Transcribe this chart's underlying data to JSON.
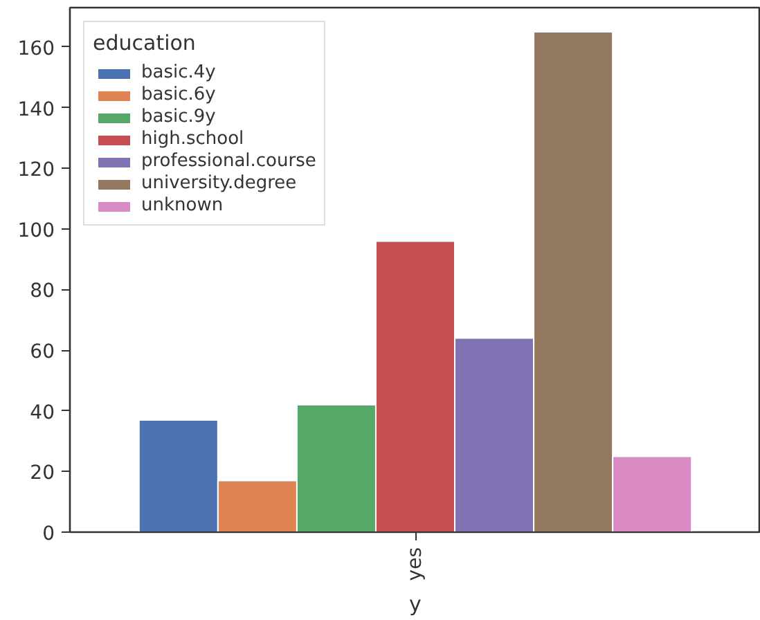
{
  "chart_data": {
    "type": "bar",
    "xlabel": "y",
    "legend_title": "education",
    "categories": [
      "yes"
    ],
    "series": [
      {
        "name": "basic.4y",
        "color": "#4c72b0",
        "values": [
          37
        ]
      },
      {
        "name": "basic.6y",
        "color": "#dd8452",
        "values": [
          17
        ]
      },
      {
        "name": "basic.9y",
        "color": "#55a868",
        "values": [
          42
        ]
      },
      {
        "name": "high.school",
        "color": "#c44e52",
        "values": [
          96
        ]
      },
      {
        "name": "professional.course",
        "color": "#8172b3",
        "values": [
          64
        ]
      },
      {
        "name": "university.degree",
        "color": "#937860",
        "values": [
          165
        ]
      },
      {
        "name": "unknown",
        "color": "#da8bc3",
        "values": [
          25
        ]
      }
    ],
    "ylim": [
      0,
      173
    ],
    "yticks": [
      0,
      20,
      40,
      60,
      80,
      100,
      120,
      140,
      160
    ],
    "grid": false,
    "legend": "top left"
  }
}
